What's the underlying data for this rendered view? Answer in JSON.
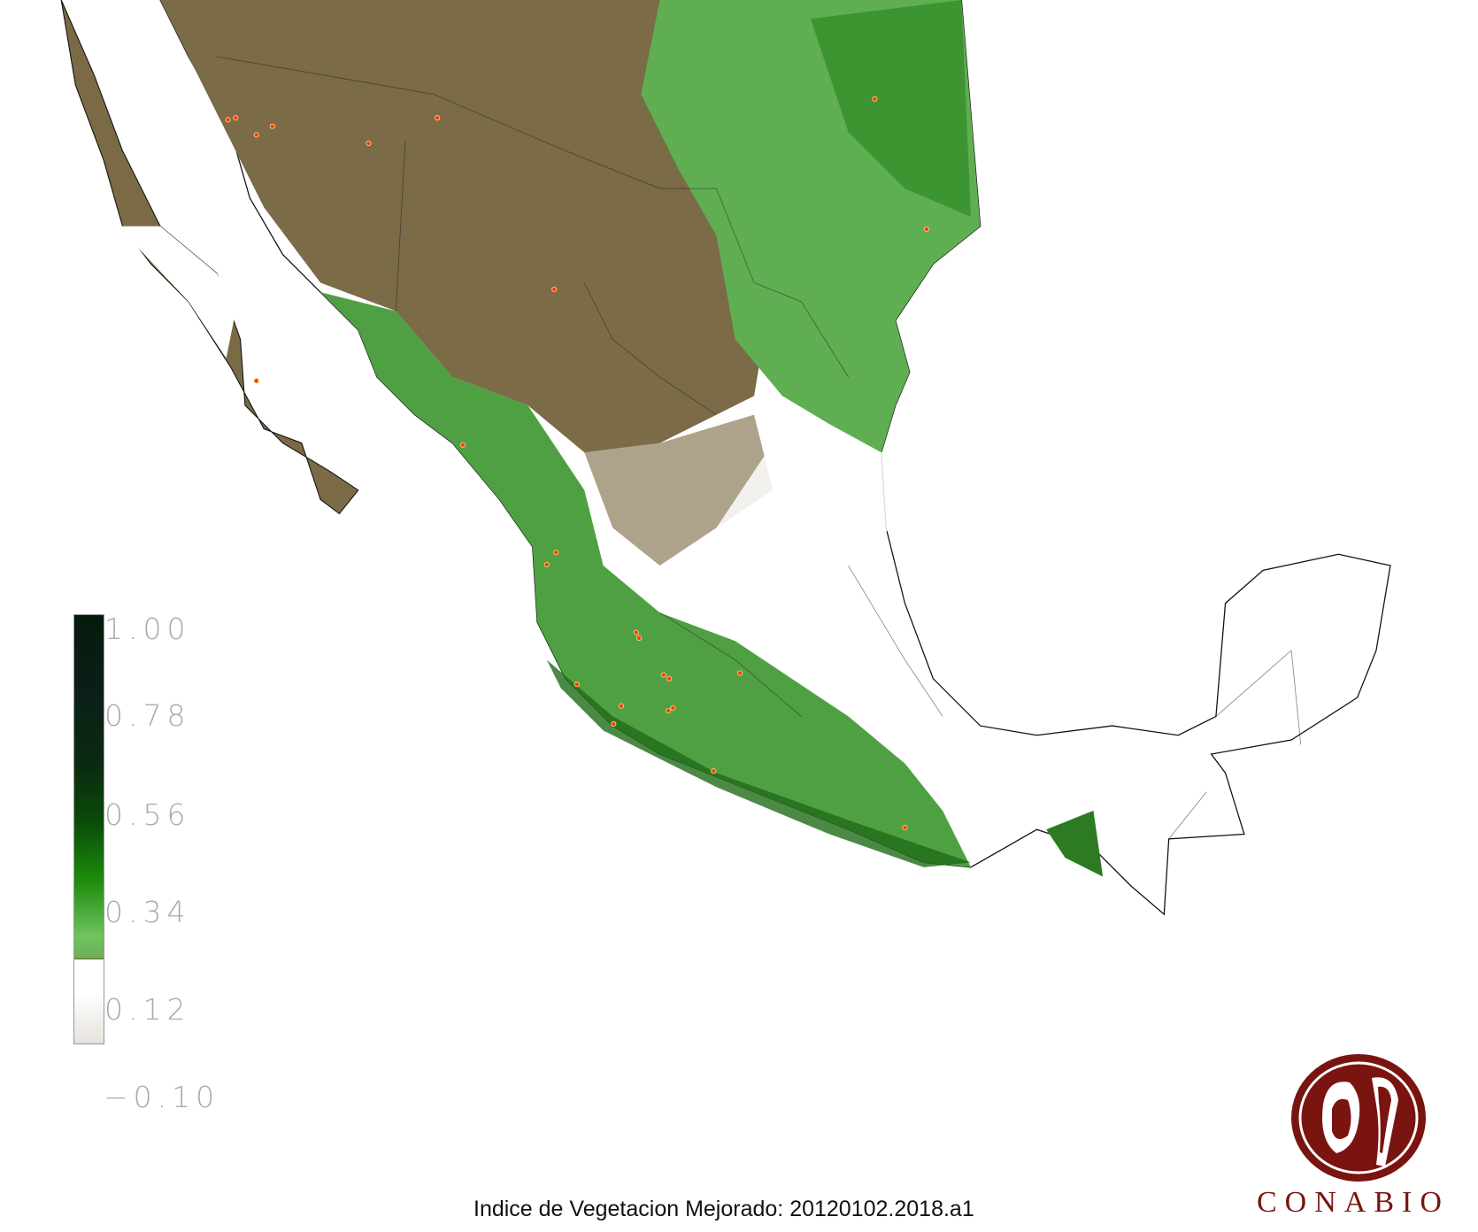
{
  "map": {
    "title": "Indice de Vegetacion Mejorado: 20120102.2018.a1",
    "colors": {
      "low": "#6e5a30",
      "mid": "#6fc460",
      "high": "#0a4a08",
      "no_data": "#ffffff",
      "fire_points": "#ff3b10"
    }
  },
  "legend": {
    "ticks": [
      "1.00",
      "0.78",
      "0.56",
      "0.34",
      "0.12",
      "−0.10"
    ],
    "range": [
      -0.1,
      1.0
    ]
  },
  "logo": {
    "text": "CONABIO",
    "color": "#7a1410"
  }
}
